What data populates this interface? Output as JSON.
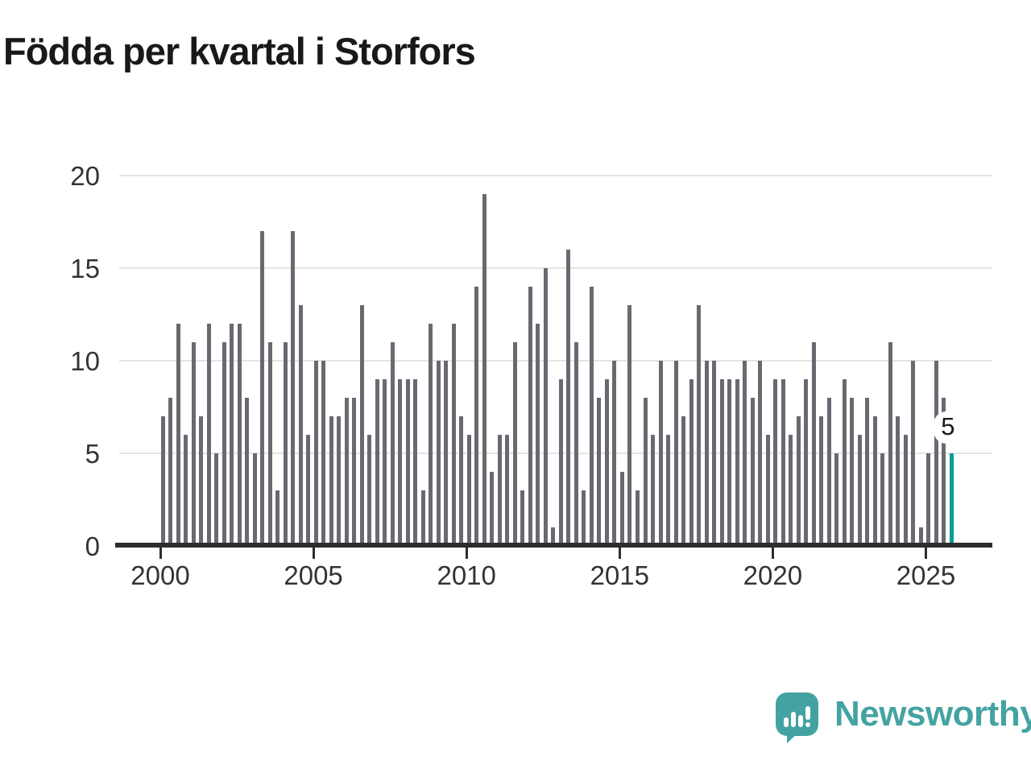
{
  "title": "Födda per kvartal i Storfors",
  "chart_data": {
    "type": "bar",
    "title": "Födda per kvartal i Storfors",
    "xlabel": "",
    "ylabel": "",
    "ylim": [
      0,
      20
    ],
    "yticks": [
      0,
      5,
      10,
      15,
      20
    ],
    "xticks": [
      "2000",
      "2005",
      "2010",
      "2015",
      "2020",
      "2025"
    ],
    "grid": "horizontal",
    "start_period": "2000Q1",
    "end_period": "2025Q4",
    "periods_per_year": 4,
    "values": [
      7,
      8,
      12,
      6,
      11,
      7,
      12,
      5,
      11,
      12,
      12,
      8,
      5,
      17,
      11,
      3,
      11,
      17,
      13,
      6,
      10,
      10,
      7,
      7,
      8,
      8,
      13,
      6,
      9,
      9,
      11,
      9,
      9,
      9,
      3,
      12,
      10,
      10,
      12,
      7,
      6,
      14,
      19,
      4,
      6,
      6,
      11,
      3,
      14,
      12,
      15,
      1,
      9,
      16,
      11,
      3,
      14,
      8,
      9,
      10,
      4,
      13,
      3,
      8,
      6,
      10,
      6,
      10,
      7,
      9,
      13,
      10,
      10,
      9,
      9,
      9,
      10,
      8,
      10,
      6,
      9,
      9,
      6,
      7,
      9,
      11,
      7,
      8,
      5,
      9,
      8,
      6,
      8,
      7,
      5,
      11,
      7,
      6,
      10,
      1,
      5,
      10,
      8,
      5
    ],
    "highlight_index": 103,
    "highlight_label": "5",
    "colors": {
      "bar": "#696971",
      "highlight": "#009e96",
      "gridline": "#e4e4e4",
      "axis": "#2d2d2d",
      "tick_label": "#333333"
    }
  },
  "annotation": {
    "latest_value_label": "5"
  },
  "logo": {
    "text": "Newsworthy",
    "color": "#44a3a2",
    "icon": "bar-chart-speech-bubble"
  }
}
